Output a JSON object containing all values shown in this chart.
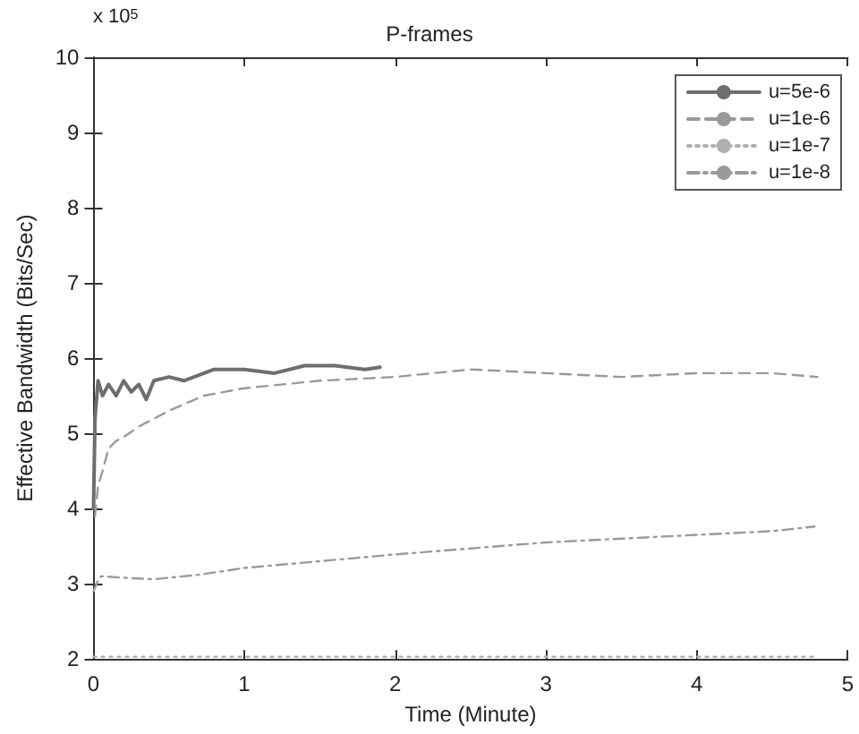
{
  "chart_data": {
    "type": "line",
    "title": "P-frames",
    "xlabel": "Time (Minute)",
    "ylabel": "Effective Bandwidth (Bits/Sec)",
    "annotations": [
      "x 10$^{5}$"
    ],
    "xlim": [
      0,
      5
    ],
    "xticks": [
      0,
      1,
      2,
      3,
      4,
      5
    ],
    "ylim": [
      2,
      10
    ],
    "yticks": [
      2,
      3,
      4,
      5,
      6,
      7,
      8,
      9,
      10
    ],
    "grid": false,
    "legend": "top right",
    "marker": "none",
    "series": [
      {
        "name": "u=5e-6",
        "color": "#6e6e6e",
        "line_style": "solid",
        "x": [
          0,
          0.01,
          0.03,
          0.06,
          0.1,
          0.15,
          0.2,
          0.25,
          0.3,
          0.35,
          0.4,
          0.5,
          0.6,
          0.8,
          1.0,
          1.2,
          1.4,
          1.6,
          1.8,
          1.9
        ],
        "values": [
          4.0,
          5.2,
          5.7,
          5.5,
          5.65,
          5.5,
          5.7,
          5.55,
          5.65,
          5.45,
          5.7,
          5.75,
          5.7,
          5.85,
          5.85,
          5.8,
          5.9,
          5.9,
          5.85,
          5.88
        ]
      },
      {
        "name": "u=1e-6",
        "color": "#9a9a9a",
        "line_style": "dashed",
        "x": [
          0.01,
          0.03,
          0.06,
          0.1,
          0.15,
          0.2,
          0.3,
          0.5,
          0.73,
          1.0,
          1.5,
          2.0,
          2.5,
          3.0,
          3.5,
          4.0,
          4.5,
          4.8
        ],
        "values": [
          3.9,
          4.3,
          4.5,
          4.8,
          4.9,
          4.95,
          5.09,
          5.3,
          5.5,
          5.6,
          5.7,
          5.75,
          5.85,
          5.8,
          5.75,
          5.8,
          5.8,
          5.75
        ]
      },
      {
        "name": "u=1e-7",
        "color": "#b0b0b0",
        "line_style": "dotted",
        "x": [
          0,
          1,
          2,
          3,
          4,
          4.8
        ],
        "values": [
          2.03,
          2.03,
          2.03,
          2.03,
          2.03,
          2.03
        ]
      },
      {
        "name": "u=1e-8",
        "color": "#9a9a9a",
        "line_style": "dashdot",
        "x": [
          0,
          0.03,
          0.05,
          0.2,
          0.4,
          0.7,
          1.0,
          1.5,
          2.0,
          2.5,
          3.0,
          3.5,
          4.0,
          4.5,
          4.78
        ],
        "values": [
          2.9,
          3.05,
          3.1,
          3.08,
          3.06,
          3.12,
          3.21,
          3.3,
          3.39,
          3.47,
          3.55,
          3.6,
          3.65,
          3.7,
          3.76
        ]
      }
    ]
  }
}
